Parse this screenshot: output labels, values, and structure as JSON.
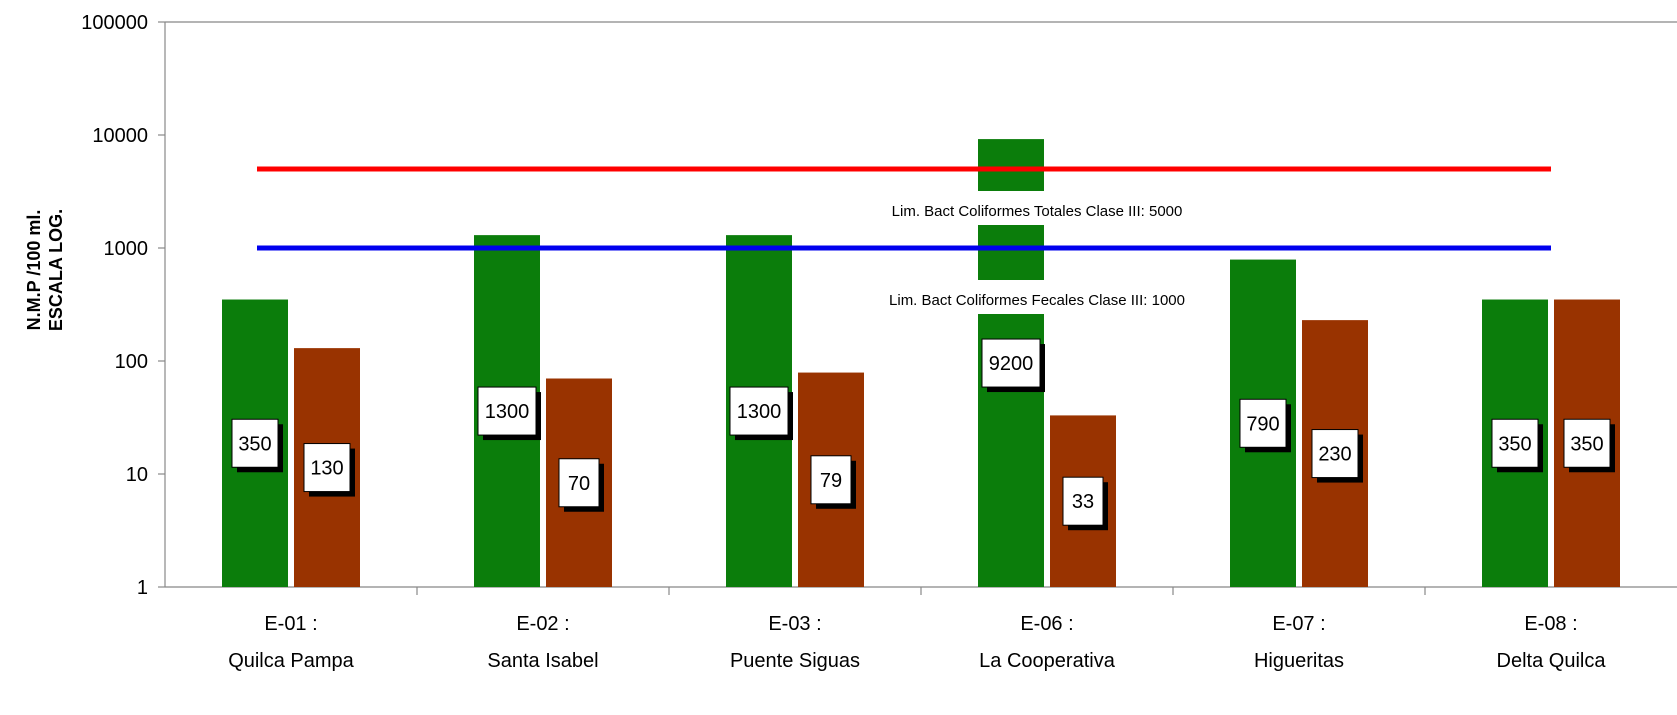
{
  "chart_data": {
    "type": "bar",
    "y_scale": "log",
    "ylim": [
      1,
      100000
    ],
    "ylabel_lines": [
      "N.M.P /100 ml.",
      "ESCALA LOG."
    ],
    "yticks": [
      "1",
      "10",
      "100",
      "1000",
      "10000",
      "100000"
    ],
    "categories": [
      {
        "code": "E-01 :",
        "name": "Quilca Pampa"
      },
      {
        "code": "E-02 :",
        "name": "Santa Isabel"
      },
      {
        "code": "E-03 :",
        "name": "Puente Siguas"
      },
      {
        "code": "E-06 :",
        "name": "La Cooperativa"
      },
      {
        "code": "E-07 :",
        "name": "Higueritas"
      },
      {
        "code": "E-08 :",
        "name": "Delta Quilca"
      }
    ],
    "series": [
      {
        "color": "#0b7d0b",
        "values": [
          350,
          1300,
          1300,
          9200,
          790,
          350
        ],
        "labels": [
          "350",
          "1300",
          "1300",
          "9200",
          "790",
          "350"
        ]
      },
      {
        "color": "#993300",
        "values": [
          130,
          70,
          79,
          33,
          230,
          350
        ],
        "labels": [
          "130",
          "70",
          "79",
          "33",
          "230",
          "350"
        ]
      }
    ],
    "reference_lines": [
      {
        "value": 5000,
        "color": "#ff0000",
        "label": "Lim. Bact Coliformes Totales Clase III: 5000"
      },
      {
        "value": 1000,
        "color": "#0000ee",
        "label": "Lim. Bact Coliformes Fecales Clase III: 1000"
      }
    ],
    "grid": false,
    "legend": "none"
  }
}
